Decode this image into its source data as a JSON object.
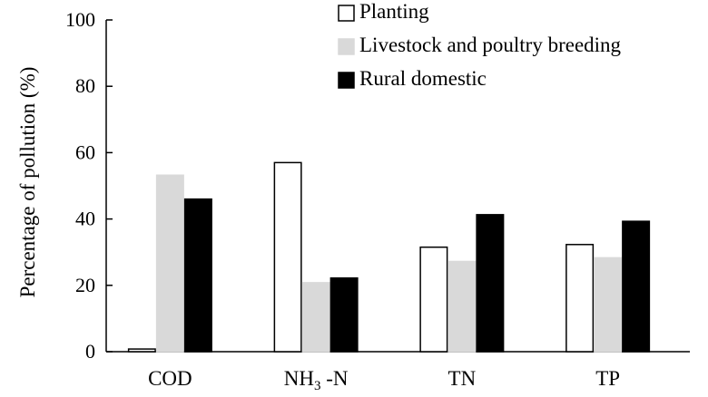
{
  "chart_data": {
    "type": "bar",
    "categories": [
      "COD",
      "NH3-N",
      "TN",
      "TP"
    ],
    "category_display": [
      {
        "main": "COD",
        "sub": "",
        "suffix": ""
      },
      {
        "main": "NH",
        "sub": "3",
        "suffix": " -N"
      },
      {
        "main": "TN",
        "sub": "",
        "suffix": ""
      },
      {
        "main": "TP",
        "sub": "",
        "suffix": ""
      }
    ],
    "series": [
      {
        "name": "Planting",
        "values": [
          0.8,
          57.0,
          31.5,
          32.3
        ],
        "color": "#ffffff",
        "stroke": "#000000"
      },
      {
        "name": "Livestock and poultry breeding",
        "values": [
          53.2,
          20.8,
          27.2,
          28.3
        ],
        "color": "#d9d9d9",
        "stroke": "#d9d9d9"
      },
      {
        "name": "Rural domestic",
        "values": [
          46.0,
          22.2,
          41.3,
          39.3
        ],
        "color": "#000000",
        "stroke": "#000000"
      }
    ],
    "title": "",
    "xlabel": "",
    "ylabel": "Percentage of pollution (%)",
    "ylim": [
      0,
      100
    ],
    "yticks": [
      0,
      20,
      40,
      60,
      80,
      100
    ],
    "ytick_labels": [
      "0",
      "20",
      "40",
      "60",
      "80",
      "100"
    ],
    "grid": false,
    "legend_position": "top-right"
  }
}
